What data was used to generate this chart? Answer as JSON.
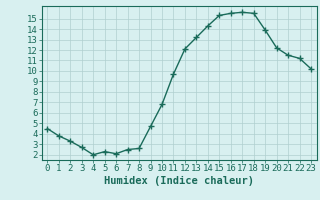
{
  "x": [
    0,
    1,
    2,
    3,
    4,
    5,
    6,
    7,
    8,
    9,
    10,
    11,
    12,
    13,
    14,
    15,
    16,
    17,
    18,
    19,
    20,
    21,
    22,
    23
  ],
  "y": [
    4.5,
    3.8,
    3.3,
    2.7,
    2.0,
    2.3,
    2.1,
    2.5,
    2.6,
    4.7,
    6.8,
    9.7,
    12.1,
    13.2,
    14.3,
    15.3,
    15.5,
    15.6,
    15.5,
    13.9,
    12.2,
    11.5,
    11.2,
    10.2
  ],
  "line_color": "#1a6b5a",
  "marker": "+",
  "marker_size": 4,
  "line_width": 1.0,
  "bg_color": "#d8f0f0",
  "grid_color": "#b0d0d0",
  "xlabel": "Humidex (Indice chaleur)",
  "xlim": [
    -0.5,
    23.5
  ],
  "ylim": [
    1.5,
    16.2
  ],
  "xtick_labels": [
    "0",
    "1",
    "2",
    "3",
    "4",
    "5",
    "6",
    "7",
    "8",
    "9",
    "10",
    "11",
    "12",
    "13",
    "14",
    "15",
    "16",
    "17",
    "18",
    "19",
    "20",
    "21",
    "22",
    "23"
  ],
  "ytick_values": [
    2,
    3,
    4,
    5,
    6,
    7,
    8,
    9,
    10,
    11,
    12,
    13,
    14,
    15
  ],
  "axis_color": "#1a6b5a",
  "tick_color": "#1a6b5a",
  "label_color": "#1a6b5a",
  "font_size": 6.5,
  "xlabel_font_size": 7.5
}
